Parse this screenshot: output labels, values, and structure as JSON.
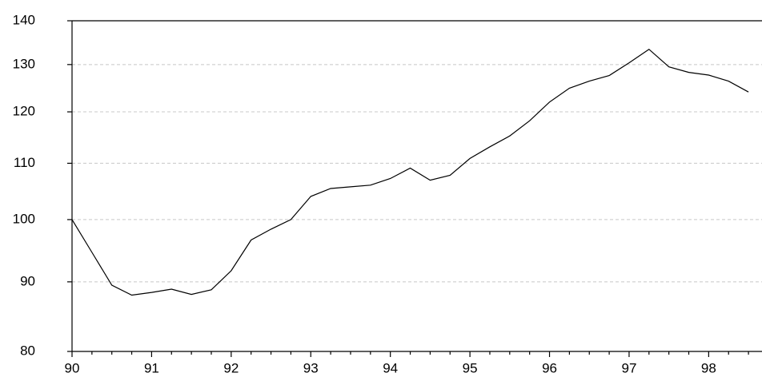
{
  "chart_data": {
    "type": "line",
    "log_scale_y": true,
    "grid": true,
    "color": "#000000",
    "x": [
      90,
      90.25,
      90.5,
      90.75,
      91,
      91.25,
      91.5,
      91.75,
      92,
      92.25,
      92.5,
      92.75,
      93,
      93.25,
      93.5,
      93.75,
      94,
      94.25,
      94.5,
      94.75,
      95,
      95.25,
      95.5,
      95.75,
      96,
      96.25,
      96.5,
      96.75,
      97,
      97.25,
      97.5,
      97.75,
      98,
      98.25,
      98.5
    ],
    "values": [
      100,
      94.6,
      89.5,
      88.0,
      88.4,
      88.9,
      88.1,
      88.8,
      91.7,
      96.6,
      98.4,
      100,
      104.0,
      105.4,
      105.7,
      106.0,
      107.2,
      109.1,
      106.9,
      107.8,
      110.9,
      113.1,
      115.2,
      118.2,
      122.0,
      124.9,
      126.4,
      127.6,
      130.4,
      133.4,
      129.5,
      128.3,
      127.7,
      126.4,
      124.1
    ],
    "xlim": [
      90,
      98.65
    ],
    "xticks": [
      90,
      91,
      92,
      93,
      94,
      95,
      96,
      97,
      98
    ],
    "ylim": [
      80,
      140
    ],
    "yticks": [
      80,
      90,
      100,
      110,
      120,
      130,
      140
    ]
  }
}
